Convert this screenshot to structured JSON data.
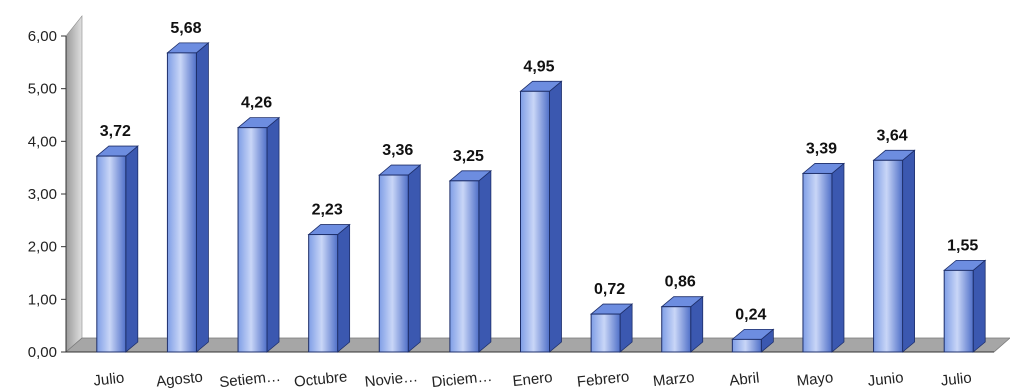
{
  "chart_data": {
    "type": "bar",
    "title": "",
    "xlabel": "",
    "ylabel": "",
    "categories": [
      "Julio",
      "Agosto",
      "Setiem…",
      "Octubre",
      "Novie…",
      "Diciem…",
      "Enero",
      "Febrero",
      "Marzo",
      "Abril",
      "Mayo",
      "Junio",
      "Julio"
    ],
    "values": [
      3.72,
      5.68,
      4.26,
      2.23,
      3.36,
      3.25,
      4.95,
      0.72,
      0.86,
      0.24,
      3.39,
      3.64,
      1.55
    ],
    "value_labels": [
      "3,72",
      "5,68",
      "4,26",
      "2,23",
      "3,36",
      "3,25",
      "4,95",
      "0,72",
      "0,86",
      "0,24",
      "3,39",
      "3,64",
      "1,55"
    ],
    "ylim": [
      0,
      6
    ],
    "yticks": [
      0,
      1,
      2,
      3,
      4,
      5,
      6
    ],
    "ytick_labels": [
      "0,00",
      "1,00",
      "2,00",
      "3,00",
      "4,00",
      "5,00",
      "6,00"
    ],
    "grid": false,
    "legend": "none",
    "style": "3d-column",
    "colors": {
      "bar_light": "#c9d6f7",
      "bar_mid": "#7f9ee6",
      "bar_dark": "#4f6fc8",
      "bar_side": "#3b58b0",
      "bar_top": "#6d8de0",
      "floor": "#a6a6a6",
      "wall": "#bdbdbd"
    }
  }
}
